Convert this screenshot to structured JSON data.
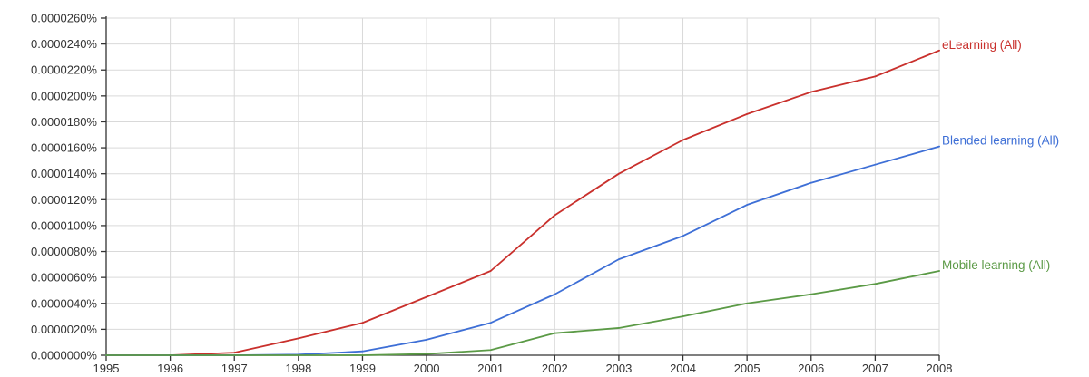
{
  "chart_data": {
    "type": "line",
    "x": [
      1995,
      1996,
      1997,
      1998,
      1999,
      2000,
      2001,
      2002,
      2003,
      2004,
      2005,
      2006,
      2007,
      2008
    ],
    "x_tick_labels": [
      "1995",
      "1996",
      "1997",
      "1998",
      "1999",
      "2000",
      "2001",
      "2002",
      "2003",
      "2004",
      "2005",
      "2006",
      "2007",
      "2008"
    ],
    "y_tick_values": [
      0,
      20,
      40,
      60,
      80,
      100,
      120,
      140,
      160,
      180,
      200,
      220,
      240,
      260
    ],
    "y_tick_labels": [
      "0.0000000%",
      "0.0000020%",
      "0.0000040%",
      "0.0000060%",
      "0.0000080%",
      "0.0000100%",
      "0.0000120%",
      "0.0000140%",
      "0.0000160%",
      "0.0000180%",
      "0.0000200%",
      "0.0000220%",
      "0.0000240%",
      "0.0000260%"
    ],
    "y_unit_note": "y values in units of 0.0000001%",
    "xlim": [
      1995,
      2008
    ],
    "ylim": [
      0,
      260
    ],
    "grid": true,
    "legend": "inline at line ends (right)",
    "title": "",
    "xlabel": "",
    "ylabel": "",
    "series": [
      {
        "name": "eLearning (All)",
        "color": "#c9302c",
        "values": [
          0,
          0,
          2,
          13,
          25,
          45,
          65,
          108,
          140,
          166,
          186,
          203,
          215,
          235
        ]
      },
      {
        "name": "Blended learning (All)",
        "color": "#3e6fd6",
        "values": [
          0,
          0,
          0,
          0.5,
          3,
          12,
          25,
          47,
          74,
          92,
          116,
          133,
          147,
          161
        ]
      },
      {
        "name": "Mobile learning (All)",
        "color": "#5b9a46",
        "values": [
          0,
          0,
          0,
          0,
          0,
          1,
          4,
          17,
          21,
          30,
          40,
          47,
          55,
          65
        ]
      }
    ]
  }
}
